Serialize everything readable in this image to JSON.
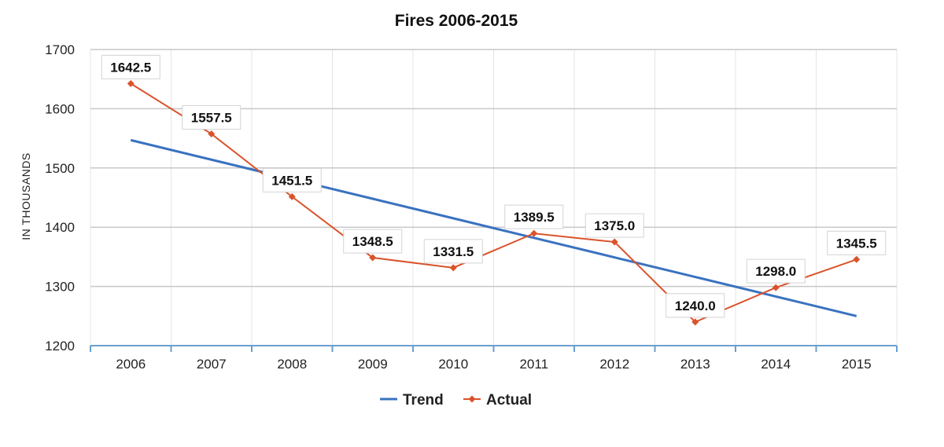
{
  "chart_data": {
    "type": "line",
    "title": "Fires 2006-2015",
    "ylabel": "IN THOUSANDS",
    "xlabel": "",
    "categories": [
      "2006",
      "2007",
      "2008",
      "2009",
      "2010",
      "2011",
      "2012",
      "2013",
      "2014",
      "2015"
    ],
    "y_ticks": [
      "1200",
      "1300",
      "1400",
      "1500",
      "1600",
      "1700"
    ],
    "ylim": [
      1200,
      1700
    ],
    "grid": true,
    "legend_position": "bottom",
    "series": [
      {
        "name": "Trend",
        "color": "#3a72c0",
        "marker": "none",
        "values": [
          1547,
          1514,
          1481,
          1448,
          1415,
          1382,
          1349,
          1316,
          1283,
          1250
        ]
      },
      {
        "name": "Actual",
        "color": "#d9532b",
        "marker": "diamond",
        "values": [
          1642.5,
          1557.5,
          1451.5,
          1348.5,
          1331.5,
          1389.5,
          1375.0,
          1240.0,
          1298.0,
          1345.5
        ],
        "labels": [
          "1642.5",
          "1557.5",
          "1451.5",
          "1348.5",
          "1331.5",
          "1389.5",
          "1375.0",
          "1240.0",
          "1298.0",
          "1345.5"
        ]
      }
    ]
  }
}
